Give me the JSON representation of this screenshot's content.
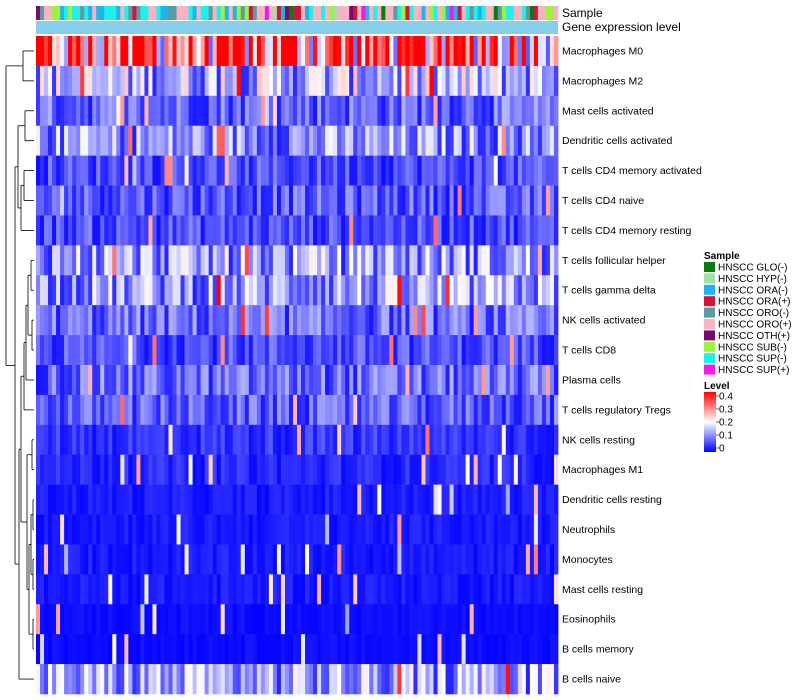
{
  "chart_data": {
    "type": "heatmap",
    "annotation_tracks": [
      "Sample",
      "Gene expression level"
    ],
    "rows": [
      "Macrophages M0",
      "Macrophages M2",
      "Mast cells activated",
      "Dendritic cells activated",
      "T cells CD4 memory activated",
      "T cells CD4 naive",
      "T cells CD4 memory resting",
      "T cells follicular helper",
      "T cells gamma delta",
      "NK cells activated",
      "T cells CD8",
      "Plasma cells",
      "T cells regulatory  Tregs",
      "NK cells resting",
      "Macrophages M1",
      "Dendritic cells resting",
      "Neutrophils",
      "Monocytes",
      "Mast cells resting",
      "Eosinophils",
      "B cells memory",
      "B cells naive"
    ],
    "row_mean_levels": [
      0.32,
      0.14,
      0.08,
      0.11,
      0.06,
      0.07,
      0.06,
      0.12,
      0.12,
      0.08,
      0.06,
      0.08,
      0.07,
      0.04,
      0.03,
      0.02,
      0.02,
      0.02,
      0.02,
      0.01,
      0.01,
      0.12
    ],
    "n_samples": 130,
    "sample_legend": {
      "title": "Sample",
      "items": [
        {
          "label": "HNSCC GLO(-)",
          "color": "#0a7a12"
        },
        {
          "label": "HNSCC HYP(-)",
          "color": "#a4dfa4"
        },
        {
          "label": "HNSCC ORA(-)",
          "color": "#1fb4ea"
        },
        {
          "label": "HNSCC ORA(+)",
          "color": "#d1163d"
        },
        {
          "label": "HNSCC ORO(-)",
          "color": "#5f9aa0"
        },
        {
          "label": "HNSCC ORO(+)",
          "color": "#f7b3c2"
        },
        {
          "label": "HNSCC OTH(+)",
          "color": "#7a0a6c"
        },
        {
          "label": "HNSCC SUB(-)",
          "color": "#9cf23c"
        },
        {
          "label": "HNSCC SUP(-)",
          "color": "#1ef0ee"
        },
        {
          "label": "HNSCC SUP(+)",
          "color": "#f21ce6"
        }
      ]
    },
    "level_legend": {
      "title": "Level",
      "ticks": [
        "0.4",
        "0.3",
        "0.2",
        "0.1",
        "0"
      ],
      "range": [
        0,
        0.4
      ],
      "colors": [
        "#0000ff",
        "#ffffff",
        "#ff0000"
      ]
    },
    "gene_expression_track_color": "#87ceeb"
  }
}
